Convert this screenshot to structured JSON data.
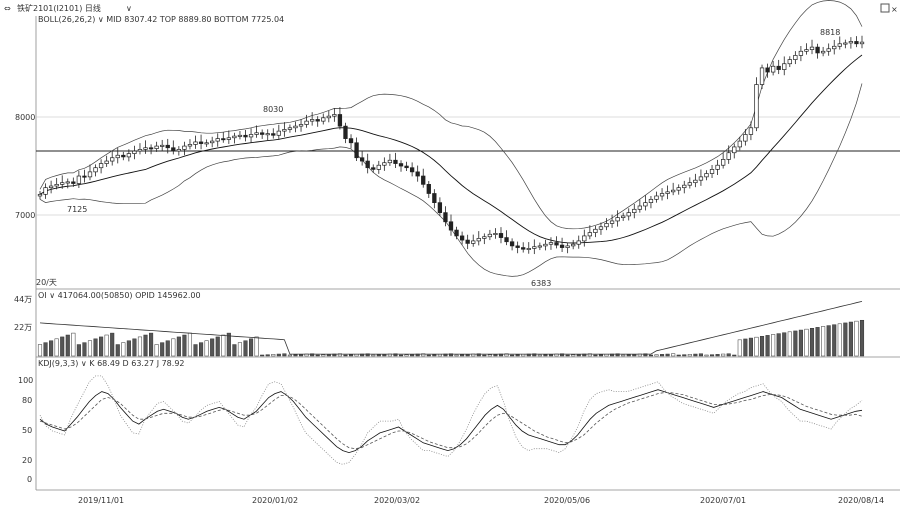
{
  "window": {
    "title": "铁矿2101(I2101) 日线",
    "menu_icon": "arrow-left-right-icon",
    "chevron_icon": "chevron-down-icon",
    "maximize_icon": "square-icon",
    "close_icon": "close-icon"
  },
  "panels": {
    "boll": {
      "header": "BOLL(26,26,2) ∨  MID 8307.42  TOP 8889.80  BOTTOM 7725.04",
      "y_ticks": [
        "8000",
        "7000"
      ],
      "annotations": [
        "8030",
        "7125",
        "6383",
        "8818"
      ],
      "period_label": "20/天"
    },
    "oi": {
      "header": "OI ∨  417064.00(50850)  OPID 145962.00",
      "y_ticks": [
        "44万",
        "22万"
      ]
    },
    "kdj": {
      "header": "KDJ(9,3,3) ∨  K 68.49  D 63.27  J 78.92",
      "y_ticks": [
        "100",
        "80",
        "50",
        "20",
        "0"
      ]
    },
    "x_dates": [
      "2019/11/01",
      "2020/01/02",
      "2020/03/02",
      "2020/05/06",
      "2020/07/01",
      "2020/08/14"
    ]
  },
  "chart_data": [
    {
      "type": "candlestick",
      "name": "BOLL",
      "ylim": [
        5950,
        9100
      ],
      "values_close": [
        6980,
        7060,
        7080,
        7100,
        7120,
        7130,
        7110,
        7200,
        7190,
        7250,
        7300,
        7350,
        7380,
        7420,
        7450,
        7430,
        7470,
        7500,
        7520,
        7540,
        7530,
        7560,
        7570,
        7540,
        7500,
        7520,
        7560,
        7580,
        7610,
        7590,
        7600,
        7620,
        7650,
        7640,
        7660,
        7680,
        7690,
        7670,
        7700,
        7720,
        7700,
        7710,
        7690,
        7740,
        7760,
        7780,
        7800,
        7820,
        7860,
        7880,
        7860,
        7900,
        7920,
        7940,
        7800,
        7650,
        7600,
        7420,
        7380,
        7300,
        7280,
        7330,
        7360,
        7390,
        7350,
        7320,
        7300,
        7250,
        7200,
        7100,
        6990,
        6880,
        6760,
        6650,
        6550,
        6480,
        6430,
        6390,
        6420,
        6450,
        6470,
        6500,
        6510,
        6460,
        6410,
        6360,
        6340,
        6320,
        6330,
        6350,
        6360,
        6380,
        6400,
        6370,
        6340,
        6360,
        6380,
        6420,
        6480,
        6520,
        6560,
        6590,
        6630,
        6660,
        6700,
        6720,
        6760,
        6800,
        6840,
        6880,
        6920,
        6960,
        6990,
        7010,
        7030,
        7060,
        7090,
        7120,
        7150,
        7190,
        7230,
        7280,
        7330,
        7400,
        7480,
        7550,
        7620,
        7700,
        7780,
        8300,
        8500,
        8450,
        8520,
        8480,
        8550,
        8600,
        8650,
        8700,
        8720,
        8750,
        8680,
        8700,
        8730,
        8760,
        8790,
        8800,
        8818,
        8790,
        8810
      ]
    },
    {
      "type": "bar",
      "name": "OI",
      "ylim": [
        0,
        440000
      ]
    },
    {
      "type": "line",
      "name": "KDJ",
      "ylim": [
        -10,
        110
      ],
      "series": [
        {
          "name": "K",
          "values": [
            60,
            55,
            52,
            50,
            48,
            55,
            62,
            70,
            78,
            84,
            88,
            86,
            80,
            72,
            65,
            58,
            55,
            60,
            64,
            68,
            70,
            68,
            66,
            62,
            60,
            62,
            65,
            68,
            70,
            72,
            70,
            66,
            62,
            60,
            64,
            68,
            75,
            82,
            86,
            88,
            84,
            78,
            70,
            62,
            56,
            50,
            44,
            38,
            32,
            28,
            26,
            28,
            32,
            38,
            42,
            46,
            48,
            50,
            52,
            48,
            44,
            40,
            36,
            34,
            32,
            30,
            28,
            30,
            34,
            40,
            48,
            56,
            64,
            70,
            74,
            70,
            62,
            54,
            48,
            44,
            42,
            40,
            38,
            36,
            34,
            34,
            38,
            44,
            52,
            60,
            66,
            70,
            74,
            76,
            78,
            80,
            82,
            84,
            86,
            88,
            90,
            88,
            86,
            84,
            82,
            80,
            78,
            76,
            74,
            72,
            74,
            76,
            78,
            80,
            82,
            84,
            86,
            88,
            86,
            84,
            82,
            78,
            74,
            70,
            68,
            66,
            64,
            62,
            60,
            62,
            64,
            66,
            68,
            69
          ]
        },
        {
          "name": "D",
          "values": [
            58,
            56,
            54,
            52,
            50,
            52,
            56,
            62,
            68,
            74,
            80,
            82,
            80,
            76,
            70,
            64,
            60,
            60,
            62,
            64,
            66,
            66,
            66,
            64,
            62,
            62,
            63,
            65,
            67,
            69,
            70,
            68,
            66,
            64,
            64,
            66,
            70,
            75,
            80,
            84,
            84,
            81,
            76,
            70,
            64,
            58,
            52,
            46,
            40,
            35,
            31,
            30,
            31,
            34,
            37,
            40,
            43,
            46,
            48,
            48,
            46,
            43,
            40,
            37,
            35,
            33,
            31,
            31,
            32,
            35,
            40,
            46,
            53,
            59,
            64,
            66,
            64,
            60,
            56,
            52,
            48,
            45,
            42,
            40,
            38,
            36,
            37,
            40,
            44,
            50,
            56,
            61,
            66,
            70,
            73,
            76,
            78,
            80,
            82,
            84,
            86,
            87,
            87,
            86,
            85,
            83,
            81,
            79,
            77,
            75,
            75,
            75,
            76,
            77,
            79,
            80,
            82,
            84,
            85,
            85,
            84,
            82,
            79,
            76,
            73,
            71,
            69,
            67,
            65,
            64,
            64,
            64,
            65,
            63
          ]
        },
        {
          "name": "J",
          "values": [
            64,
            53,
            48,
            46,
            44,
            61,
            74,
            86,
            98,
            104,
            104,
            94,
            80,
            64,
            55,
            46,
            45,
            60,
            68,
            76,
            78,
            72,
            66,
            58,
            56,
            62,
            69,
            74,
            76,
            78,
            70,
            62,
            54,
            52,
            64,
            72,
            85,
            96,
            98,
            96,
            84,
            72,
            58,
            46,
            40,
            34,
            28,
            22,
            16,
            14,
            16,
            24,
            34,
            46,
            52,
            58,
            58,
            58,
            60,
            48,
            40,
            34,
            28,
            28,
            26,
            24,
            22,
            28,
            38,
            50,
            64,
            76,
            86,
            92,
            94,
            78,
            58,
            42,
            32,
            28,
            30,
            30,
            30,
            28,
            26,
            30,
            40,
            52,
            68,
            80,
            86,
            88,
            90,
            88,
            88,
            88,
            90,
            92,
            94,
            96,
            98,
            90,
            84,
            80,
            76,
            74,
            72,
            70,
            68,
            66,
            72,
            78,
            82,
            86,
            88,
            92,
            94,
            96,
            88,
            82,
            78,
            70,
            64,
            58,
            58,
            56,
            54,
            52,
            50,
            58,
            64,
            70,
            74,
            79
          ]
        }
      ]
    }
  ]
}
